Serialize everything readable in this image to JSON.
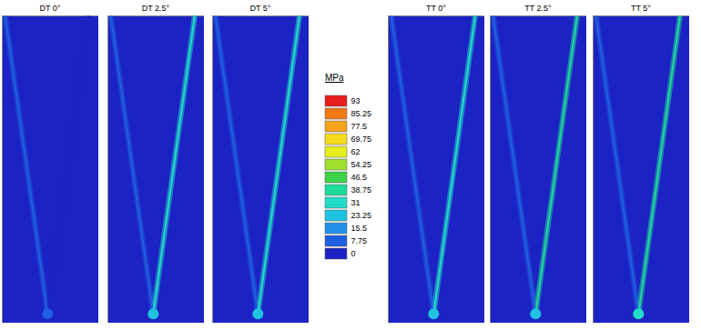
{
  "chart_data": {
    "type": "contour",
    "panels": [
      {
        "title": "DT 0°",
        "left_leg": 10,
        "right_leg": 5,
        "tip": 15
      },
      {
        "title": "DT 2.5°",
        "left_leg": 12,
        "right_leg": 35,
        "tip": 25
      },
      {
        "title": "DT 5°",
        "left_leg": 12,
        "right_leg": 31,
        "tip": 27
      },
      {
        "title": "TT 0°",
        "left_leg": 12,
        "right_leg": 31,
        "tip": 25
      },
      {
        "title": "TT 2.5°",
        "left_leg": 15,
        "right_leg": 40,
        "tip": 30
      },
      {
        "title": "TT 5°",
        "left_leg": 15,
        "right_leg": 42,
        "tip": 35
      }
    ],
    "colorbar": {
      "label": "MPa",
      "ticks": [
        0,
        7.75,
        15.5,
        23.25,
        31,
        38.75,
        46.5,
        54.25,
        62,
        69.75,
        77.5,
        85.25,
        93
      ],
      "colors": [
        "#1c23c4",
        "#1f5fe0",
        "#2390e8",
        "#1fc3e0",
        "#20dcc8",
        "#1ed99a",
        "#3cd24a",
        "#9ee02a",
        "#e6ef1e",
        "#f5dc1a",
        "#f5a51a",
        "#f07a18",
        "#e81e1e"
      ]
    }
  }
}
